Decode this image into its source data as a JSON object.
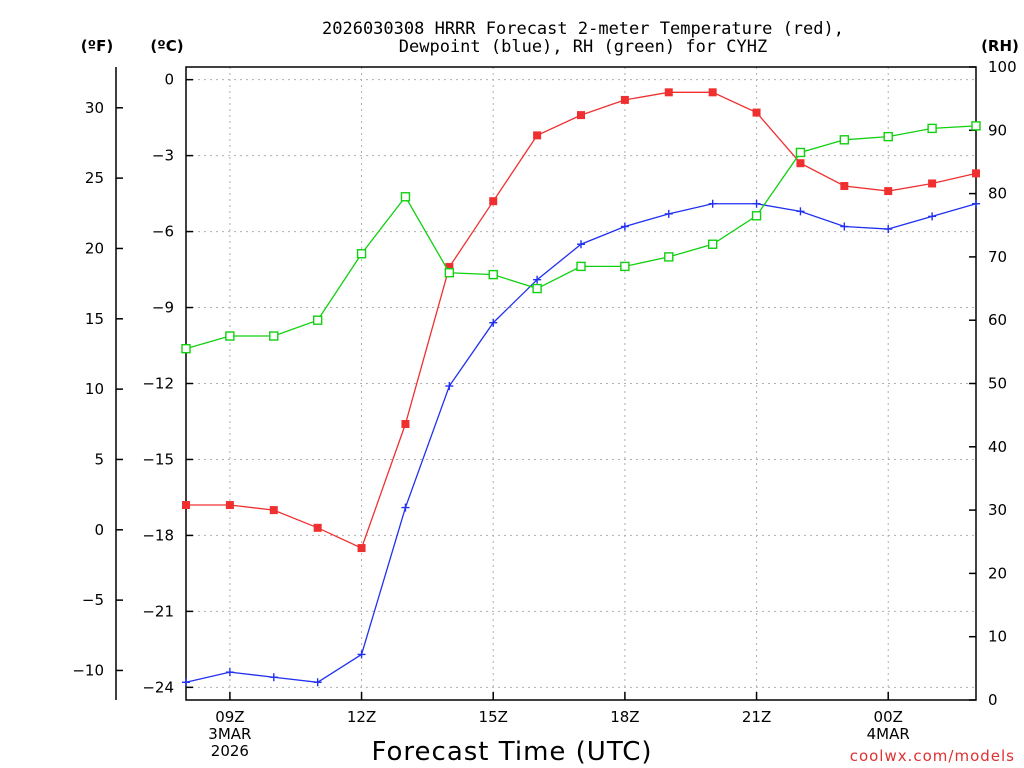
{
  "chart_data": {
    "type": "line",
    "title": [
      "2026030308 HRRR Forecast 2-meter Temperature (red),",
      "Dewpoint (blue), RH (green) for CYHZ"
    ],
    "xlabel": "Forecast Time (UTC)",
    "credit": "coolwx.com/models",
    "x": [
      "08Z",
      "09Z",
      "10Z",
      "11Z",
      "12Z",
      "13Z",
      "14Z",
      "15Z",
      "16Z",
      "17Z",
      "18Z",
      "19Z",
      "20Z",
      "21Z",
      "22Z",
      "23Z",
      "00Z",
      "01Z",
      "02Z"
    ],
    "x_ticks": [
      {
        "index": 1,
        "lines": [
          "09Z",
          "3MAR",
          "2026"
        ]
      },
      {
        "index": 4,
        "lines": [
          "12Z"
        ]
      },
      {
        "index": 7,
        "lines": [
          "15Z"
        ]
      },
      {
        "index": 10,
        "lines": [
          "18Z"
        ]
      },
      {
        "index": 13,
        "lines": [
          "21Z"
        ]
      },
      {
        "index": 16,
        "lines": [
          "00Z",
          "4MAR"
        ]
      }
    ],
    "axes": {
      "left_f": {
        "unit": "(ºF)",
        "ticks": [
          "30",
          "25",
          "20",
          "15",
          "10",
          "5",
          "0",
          "−5",
          "−10"
        ]
      },
      "left_c": {
        "unit": "(ºC)",
        "ylim": [
          -24.5,
          0.5
        ],
        "ticks": [
          "0",
          "−3",
          "−6",
          "−9",
          "−12",
          "−15",
          "−18",
          "−21",
          "−24"
        ]
      },
      "right_rh": {
        "unit": "(RH)",
        "ylim": [
          0,
          100
        ],
        "ticks": [
          "100",
          "90",
          "80",
          "70",
          "60",
          "50",
          "40",
          "30",
          "20",
          "10",
          "0"
        ]
      }
    },
    "series": [
      {
        "name": "2-meter Temperature",
        "color": "#f03030",
        "axis": "celsius",
        "marker": "filled-square",
        "values": [
          -16.8,
          -16.8,
          -17.0,
          -17.7,
          -18.5,
          -13.6,
          -7.4,
          -4.8,
          -2.2,
          -1.4,
          -0.8,
          -0.5,
          -0.5,
          -1.3,
          -3.3,
          -4.2,
          -4.4,
          -4.1,
          -3.7
        ]
      },
      {
        "name": "Dewpoint",
        "color": "#2030f0",
        "axis": "celsius",
        "marker": "plus",
        "values": [
          -23.8,
          -23.4,
          -23.6,
          -23.8,
          -22.7,
          -16.9,
          -12.1,
          -9.6,
          -7.9,
          -6.5,
          -5.8,
          -5.3,
          -4.9,
          -4.9,
          -5.2,
          -5.8,
          -5.9,
          -5.4,
          -4.9
        ]
      },
      {
        "name": "RH",
        "color": "#10d010",
        "axis": "rh",
        "marker": "open-square",
        "values": [
          55.5,
          57.5,
          57.5,
          60,
          70.5,
          79.5,
          67.5,
          67.2,
          65,
          68.5,
          68.5,
          70,
          72,
          76.5,
          86.5,
          88.5,
          89,
          90.3,
          90.7
        ]
      }
    ]
  }
}
